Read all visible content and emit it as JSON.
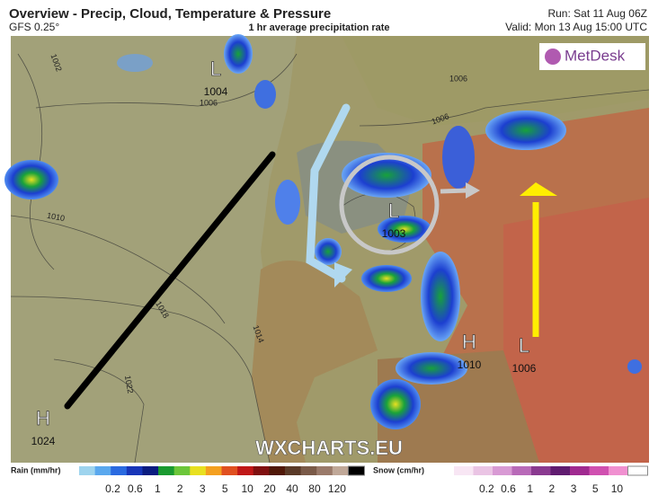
{
  "header": {
    "title": "Overview - Precip, Cloud, Temperature & Pressure",
    "model": "GFS 0.25°",
    "subtitle": "1 hr average precipitation rate",
    "run": "Run: Sat 11 Aug 06Z",
    "valid": "Valid: Mon 13 Aug 15:00 UTC"
  },
  "logo": "MetDesk",
  "watermark": "WXCHARTS.EU",
  "centers": [
    {
      "type": "L",
      "pressure": "1004"
    },
    {
      "type": "L",
      "pressure": "1003"
    },
    {
      "type": "H",
      "pressure": "1010"
    },
    {
      "type": "L",
      "pressure": "1006"
    },
    {
      "type": "H",
      "pressure": "1024"
    }
  ],
  "isobar_labels": [
    "1002",
    "1006",
    "1006",
    "1006",
    "1010",
    "1018",
    "1014",
    "1022"
  ],
  "legends": [
    {
      "title": "Rain (mm/hr)",
      "ticks": [
        "0.2",
        "0.6",
        "1",
        "2",
        "3",
        "5",
        "10",
        "20",
        "40",
        "80",
        "120"
      ]
    },
    {
      "title": "Snow (cm/hr)",
      "ticks": [
        "0.2",
        "0.6",
        "1",
        "2",
        "3",
        "5",
        "10"
      ]
    }
  ]
}
